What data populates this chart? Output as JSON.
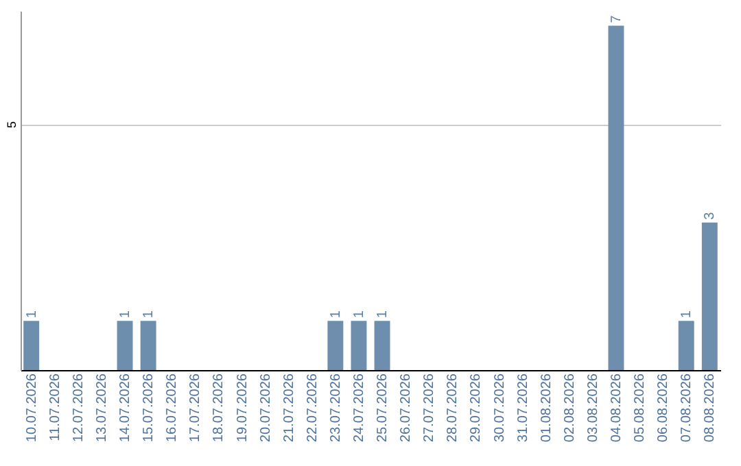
{
  "chart_data": {
    "type": "bar",
    "categories": [
      "10.07.2026",
      "11.07.2026",
      "12.07.2026",
      "13.07.2026",
      "14.07.2026",
      "15.07.2026",
      "16.07.2026",
      "17.07.2026",
      "18.07.2026",
      "19.07.2026",
      "20.07.2026",
      "21.07.2026",
      "22.07.2026",
      "23.07.2026",
      "24.07.2026",
      "25.07.2026",
      "26.07.2026",
      "27.07.2026",
      "28.07.2026",
      "29.07.2026",
      "30.07.2026",
      "31.07.2026",
      "01.08.2026",
      "02.08.2026",
      "03.08.2026",
      "04.08.2026",
      "05.08.2026",
      "06.08.2026",
      "07.08.2026",
      "08.08.2026"
    ],
    "values": [
      1,
      0,
      0,
      0,
      1,
      1,
      0,
      0,
      0,
      0,
      0,
      0,
      0,
      1,
      1,
      1,
      0,
      0,
      0,
      0,
      0,
      0,
      0,
      0,
      0,
      7,
      0,
      0,
      1,
      3
    ],
    "value_labels": [
      "1",
      null,
      null,
      null,
      "1",
      "1",
      null,
      null,
      null,
      null,
      null,
      null,
      null,
      "1",
      "1",
      "1",
      null,
      null,
      null,
      null,
      null,
      null,
      null,
      null,
      null,
      "7",
      null,
      null,
      "1",
      "3"
    ],
    "color": "#6d8fad",
    "ylim": [
      0,
      7.3
    ],
    "yticks": [
      5
    ],
    "grid": "y"
  }
}
